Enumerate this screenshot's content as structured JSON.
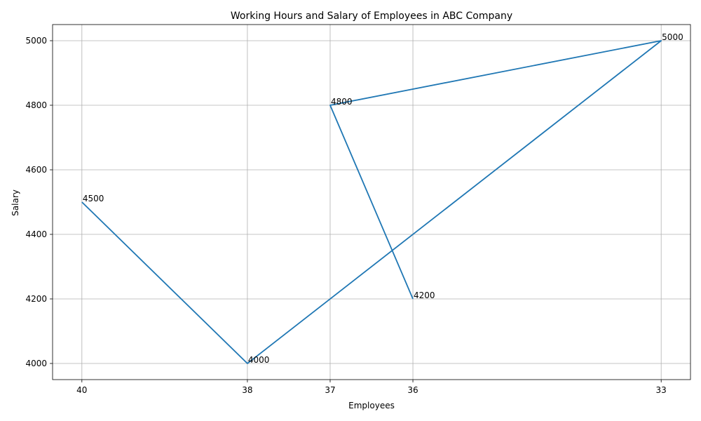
{
  "chart_data": {
    "type": "line",
    "title": "Working Hours and Salary of Employees in ABC Company",
    "xlabel": "Employees",
    "ylabel": "Salary",
    "x": [
      40,
      38,
      33,
      37,
      36
    ],
    "xticks": [
      40,
      38,
      37,
      36,
      33
    ],
    "xlim": [
      40.3542,
      32.6458
    ],
    "yticks": [
      4000,
      4200,
      4400,
      4600,
      4800,
      5000
    ],
    "ylim": [
      3950,
      5050
    ],
    "grid": true,
    "series": [
      {
        "values": [
          4500,
          4000,
          5000,
          4800,
          4200
        ],
        "color": "#1f77b4"
      }
    ],
    "data_labels": [
      "4500",
      "4000",
      "5000",
      "4800",
      "4200"
    ]
  }
}
